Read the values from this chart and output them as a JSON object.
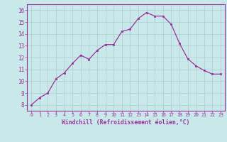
{
  "x": [
    0,
    1,
    2,
    3,
    4,
    5,
    6,
    7,
    8,
    9,
    10,
    11,
    12,
    13,
    14,
    15,
    16,
    17,
    18,
    19,
    20,
    21,
    22,
    23
  ],
  "y": [
    8.0,
    8.6,
    9.0,
    10.2,
    10.7,
    11.5,
    12.2,
    11.85,
    12.6,
    13.1,
    13.1,
    14.2,
    14.4,
    15.3,
    15.8,
    15.5,
    15.5,
    14.8,
    13.2,
    11.9,
    11.3,
    10.9,
    10.6,
    10.6
  ],
  "line_color": "#993399",
  "marker": "s",
  "marker_size": 2,
  "bg_color": "#c8e8ea",
  "grid_color": "#b0d0d4",
  "xlabel": "Windchill (Refroidissement éolien,°C)",
  "xlabel_color": "#993399",
  "tick_color": "#993399",
  "ylim": [
    7.5,
    16.5
  ],
  "xlim": [
    -0.5,
    23.5
  ],
  "yticks": [
    8,
    9,
    10,
    11,
    12,
    13,
    14,
    15,
    16
  ],
  "xticks": [
    0,
    1,
    2,
    3,
    4,
    5,
    6,
    7,
    8,
    9,
    10,
    11,
    12,
    13,
    14,
    15,
    16,
    17,
    18,
    19,
    20,
    21,
    22,
    23
  ],
  "spine_color": "#993399"
}
